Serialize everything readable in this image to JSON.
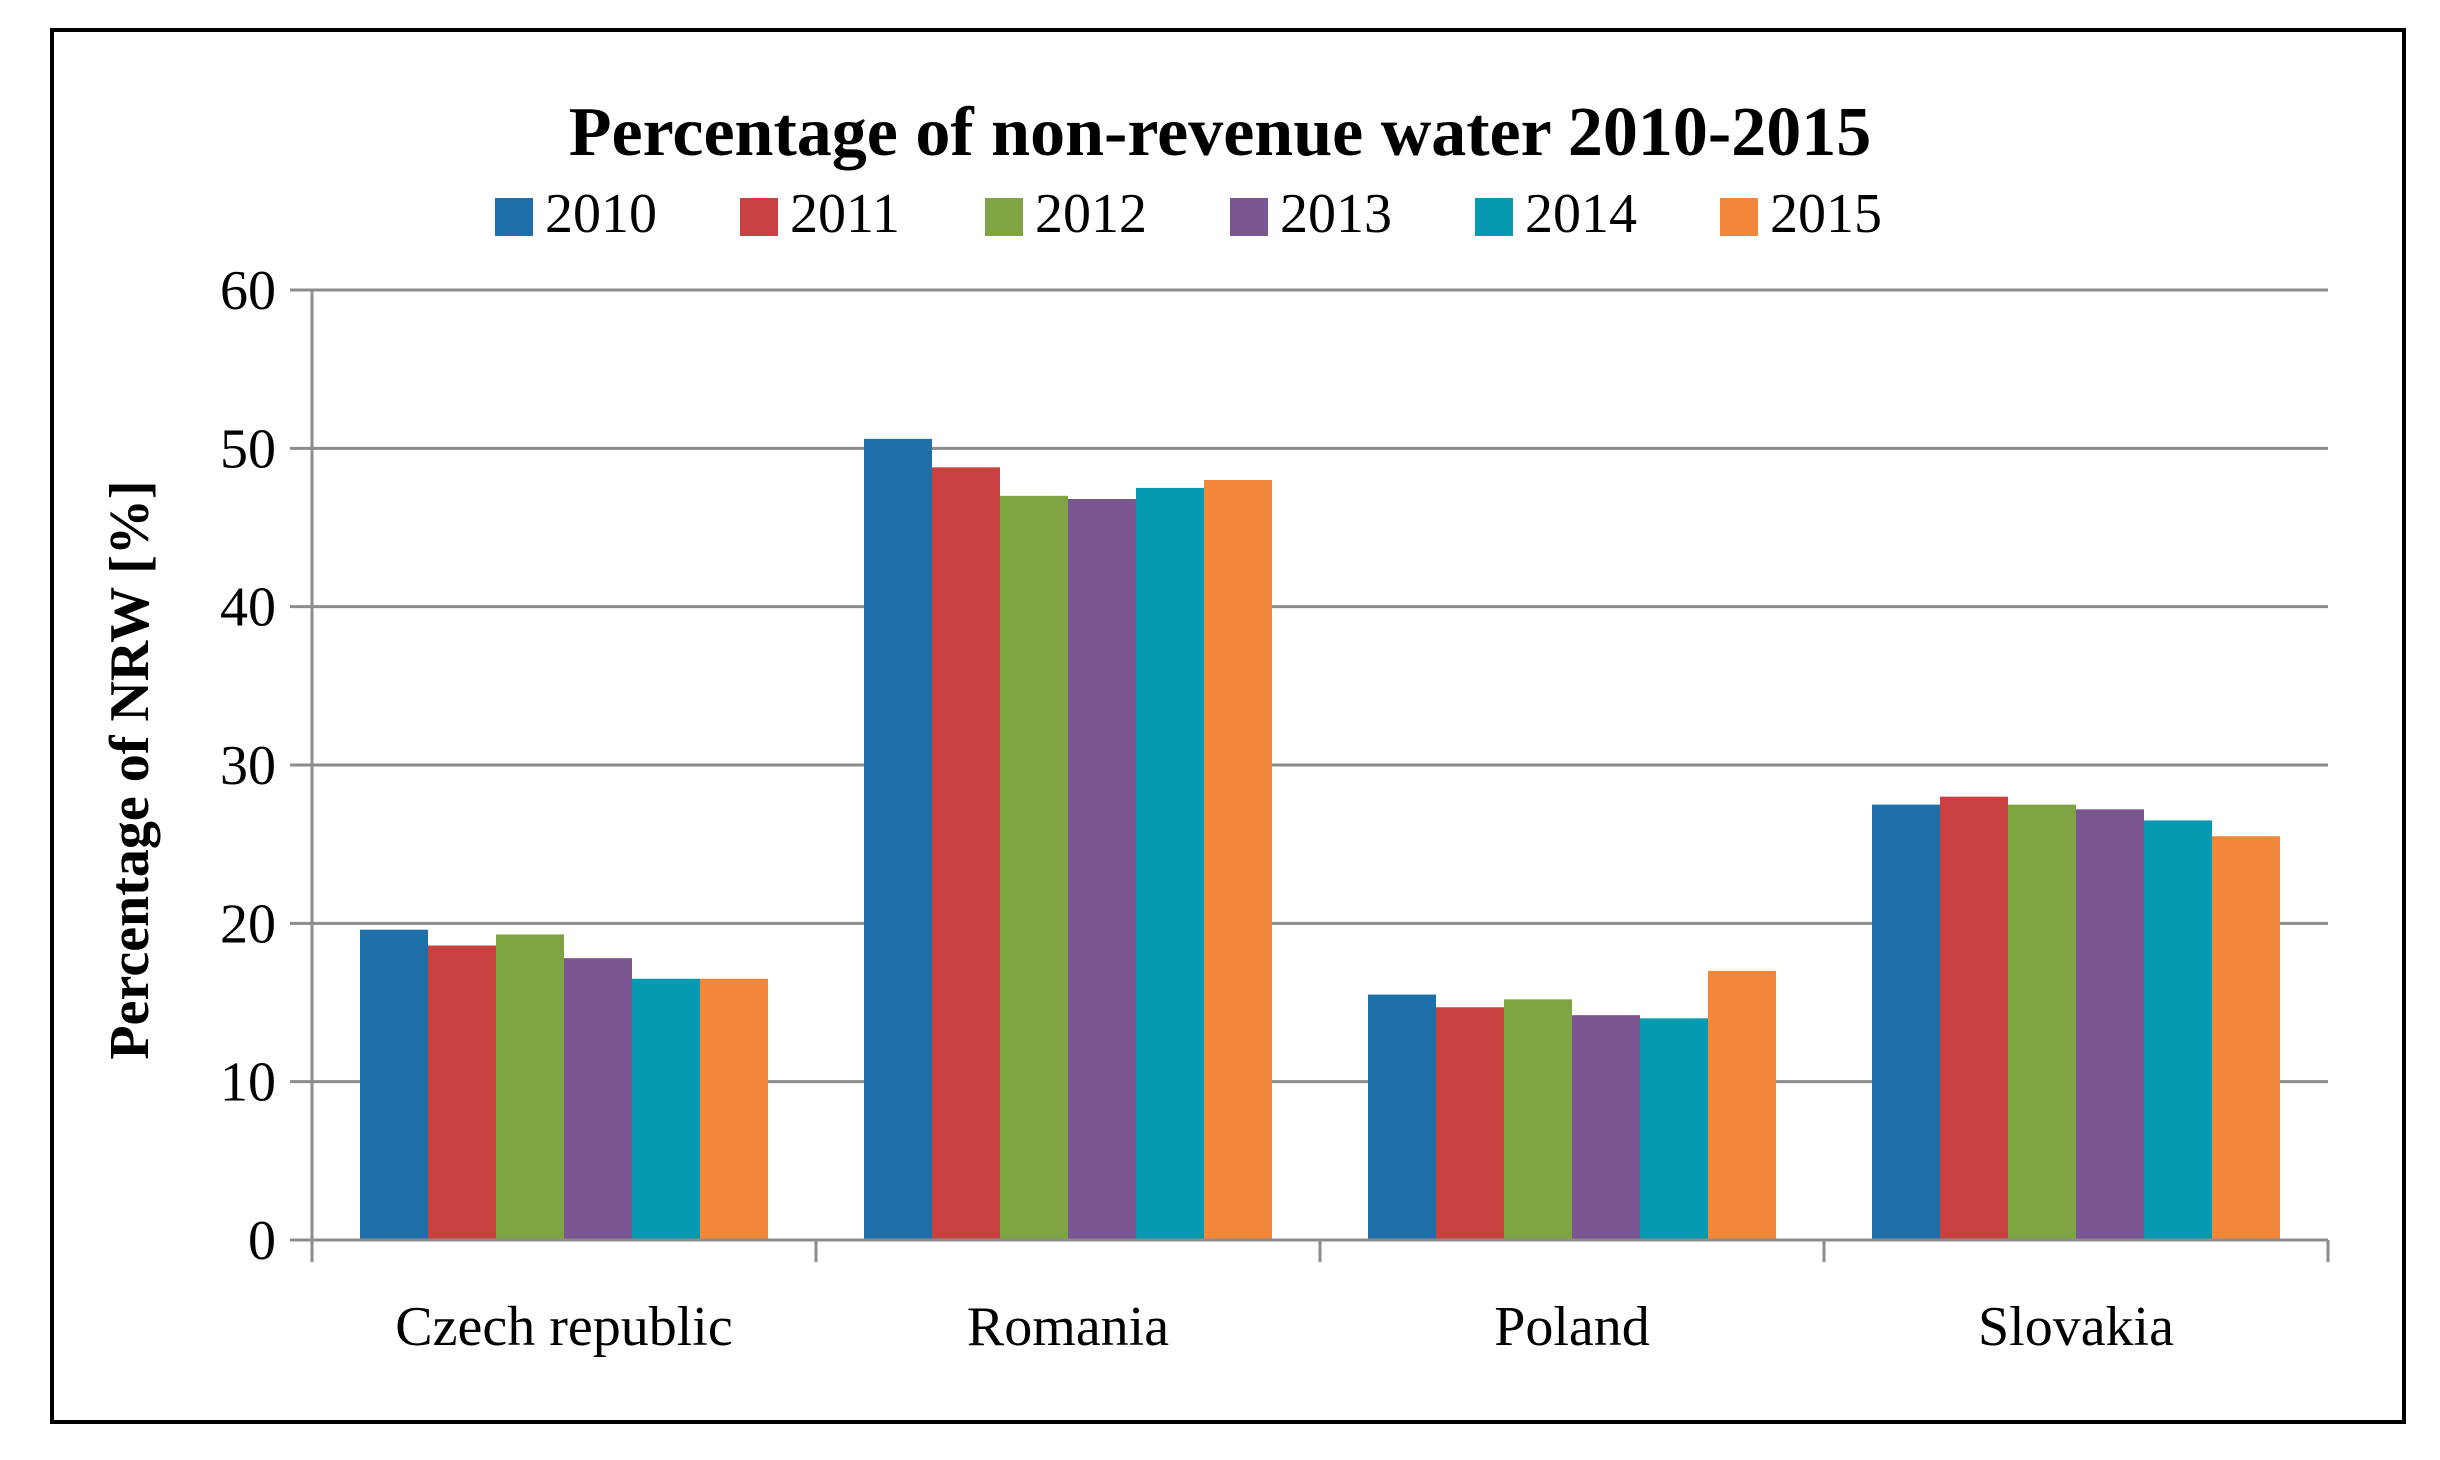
{
  "chart_data": {
    "type": "bar",
    "title": "Percentage of non-revenue water 2010-2015",
    "xlabel": "",
    "ylabel": "Percentage of NRW [%]",
    "ylim": [
      0,
      60
    ],
    "yticks": [
      0,
      10,
      20,
      30,
      40,
      50,
      60
    ],
    "grid": true,
    "legend_position": "top",
    "categories": [
      "Czech republic",
      "Romania",
      "Poland",
      "Slovakia"
    ],
    "series": [
      {
        "name": "2010",
        "color": "#1F6FAA",
        "values": [
          19.6,
          50.6,
          15.5,
          27.5
        ]
      },
      {
        "name": "2011",
        "color": "#C8403F",
        "values": [
          18.6,
          48.8,
          14.7,
          28.0
        ]
      },
      {
        "name": "2012",
        "color": "#7EA443",
        "values": [
          19.3,
          47.0,
          15.2,
          27.5
        ]
      },
      {
        "name": "2013",
        "color": "#7A558F",
        "values": [
          17.8,
          46.8,
          14.2,
          27.2
        ]
      },
      {
        "name": "2014",
        "color": "#0899B2",
        "values": [
          16.5,
          47.5,
          14.0,
          26.5
        ]
      },
      {
        "name": "2015",
        "color": "#F2873A",
        "values": [
          16.5,
          48.0,
          17.0,
          25.5
        ]
      }
    ]
  }
}
